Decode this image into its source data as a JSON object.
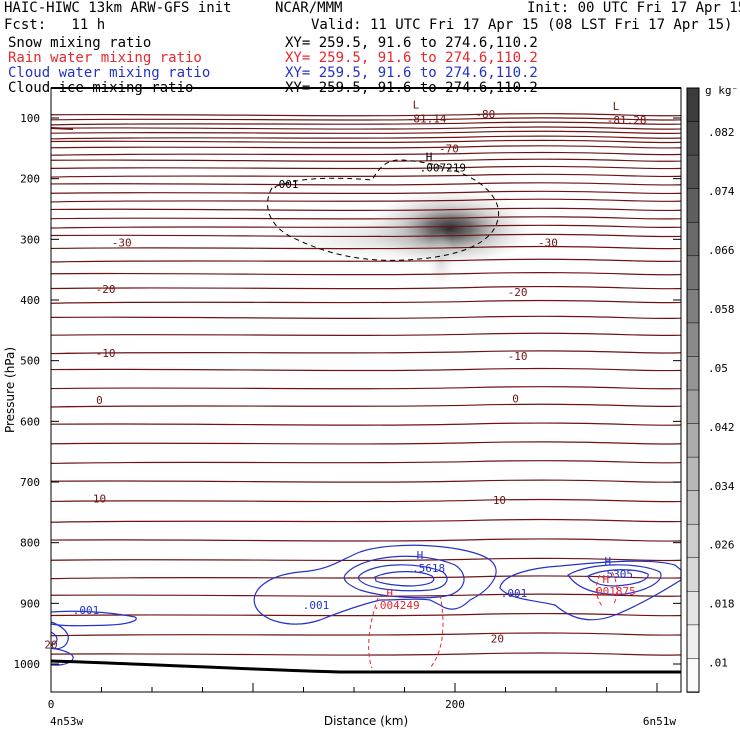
{
  "header": {
    "title_left": "HAIC-HIWC 13km ARW-GFS init",
    "title_mid": "NCAR/MMM",
    "init": "Init: 00 UTC Fri 17 Apr 15",
    "fcst": "Fcst:   11 h",
    "valid": "Valid: 11 UTC Fri 17 Apr 15 (08 LST Fri 17 Apr 15)"
  },
  "fields": [
    {
      "name": "Snow mixing ratio",
      "xy": "XY= 259.5, 91.6 to 274.6,110.2",
      "color": "#000000"
    },
    {
      "name": "Rain water mixing ratio",
      "xy": "XY= 259.5, 91.6 to 274.6,110.2",
      "color": "#e8282c"
    },
    {
      "name": "Cloud water mixing ratio",
      "xy": "XY= 259.5, 91.6 to 274.6,110.2",
      "color": "#2432c8"
    },
    {
      "name": "Cloud ice mixing ratio",
      "xy": "XY= 259.5, 91.6 to 274.6,110.2",
      "color": "#000000"
    }
  ],
  "chart_data": {
    "type": "contour-cross-section",
    "xlabel": "Distance (km)",
    "ylabel": "Pressure (hPa)",
    "x_ticks": [
      "0",
      "200"
    ],
    "x_tick_values": [
      0,
      200
    ],
    "xlim": [
      0,
      312
    ],
    "y_ticks": [
      "100",
      "200",
      "300",
      "400",
      "500",
      "600",
      "700",
      "800",
      "900",
      "1000"
    ],
    "y_tick_values": [
      100,
      200,
      300,
      400,
      500,
      600,
      700,
      800,
      900,
      1000
    ],
    "ylim": [
      1045,
      70
    ],
    "left_endpoint": "4n53w",
    "right_endpoint": "6n51w",
    "colorbar": {
      "unit": "g kg⁻¹",
      "labels": [
        ".082",
        ".074",
        ".066",
        ".058",
        ".05",
        ".042",
        ".034",
        ".026",
        ".018",
        ".01"
      ],
      "values": [
        0.082,
        0.074,
        0.066,
        0.058,
        0.05,
        0.042,
        0.034,
        0.026,
        0.018,
        0.01
      ]
    },
    "temperature_contour_color": "#6e1414",
    "temperature_labels": [
      {
        "text": "-30",
        "x": 35,
        "p": 305
      },
      {
        "text": "-30",
        "x": 246,
        "p": 305
      },
      {
        "text": "-20",
        "x": 27,
        "p": 382
      },
      {
        "text": "-20",
        "x": 231,
        "p": 387
      },
      {
        "text": "-10",
        "x": 27,
        "p": 487
      },
      {
        "text": "-10",
        "x": 231,
        "p": 492
      },
      {
        "text": "0",
        "x": 24,
        "p": 565
      },
      {
        "text": "0",
        "x": 230,
        "p": 562
      },
      {
        "text": "10",
        "x": 24,
        "p": 727
      },
      {
        "text": "10",
        "x": 222,
        "p": 730
      },
      {
        "text": "20",
        "x": 0,
        "p": 968
      },
      {
        "text": "20",
        "x": 221,
        "p": 958
      },
      {
        "text": "-70",
        "x": 197,
        "p": 150
      },
      {
        "text": "-80",
        "x": 215,
        "p": 93
      }
    ],
    "temperature_extrema": [
      {
        "kind": "L",
        "value": "-81.14",
        "x": 183,
        "p": 88
      },
      {
        "kind": "L",
        "value": "-81.28",
        "x": 282,
        "p": 90
      }
    ],
    "snow_max": {
      "kind": "H",
      "value": ".007219",
      "x": 188,
      "p": 200,
      "contour_label": ".001"
    },
    "cloud_water": {
      "contour_label": ".001",
      "maxima": [
        {
          "kind": "H",
          "value": ".5618",
          "x": 182,
          "p": 850
        },
        {
          "kind": "H",
          "value": ".5305",
          "x": 275,
          "p": 860
        }
      ]
    },
    "rain_water": {
      "maxima": [
        {
          "kind": "H",
          "value": ".004249",
          "x": 170,
          "p": 903
        },
        {
          "kind": "H",
          "value": ".001875",
          "x": 277,
          "p": 880
        }
      ]
    },
    "ice_shading_peak": {
      "x": 200,
      "p": 285
    }
  }
}
